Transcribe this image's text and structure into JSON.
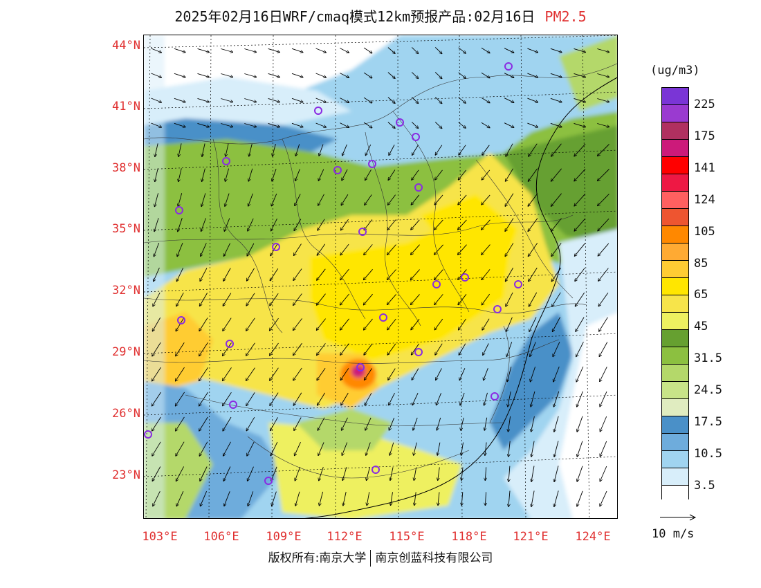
{
  "title": {
    "text": "2025年02月16日WRF/cmaq模式12km预报产品:02月16日",
    "pollutant": "PM2.5"
  },
  "map": {
    "latitude_labels": [
      "44°N",
      "41°N",
      "38°N",
      "35°N",
      "32°N",
      "29°N",
      "26°N",
      "23°N"
    ],
    "longitude_labels": [
      "103°E",
      "106°E",
      "109°E",
      "112°E",
      "115°E",
      "118°E",
      "121°E",
      "124°E"
    ],
    "lon_range": [
      102.8,
      124
    ],
    "lat_range": [
      21,
      44.6
    ]
  },
  "legend": {
    "units": "(ug/m3)",
    "colors": [
      "#7a35d6",
      "#9a3ad0",
      "#b03060",
      "#cc1a7a",
      "#ff0000",
      "#ee1844",
      "#ff6060",
      "#ee5530",
      "#ff8800",
      "#ffaa33",
      "#ffcc33",
      "#ffe600",
      "#f7e44a",
      "#eef060",
      "#66a030",
      "#8cc040",
      "#b4d86a",
      "#c8e488",
      "#e0ecc0",
      "#4a90c8",
      "#6eacdc",
      "#a0d4f0",
      "#d8eefa",
      "#ffffff"
    ],
    "labels": [
      "225",
      "175",
      "141",
      "124",
      "105",
      "85",
      "65",
      "45",
      "31.5",
      "24.5",
      "17.5",
      "10.5",
      "3.5"
    ],
    "reference_wind": "10 m/s"
  },
  "copyright": {
    "left": "版权所有:南京大学",
    "right": "南京创蓝科技有限公司"
  }
}
